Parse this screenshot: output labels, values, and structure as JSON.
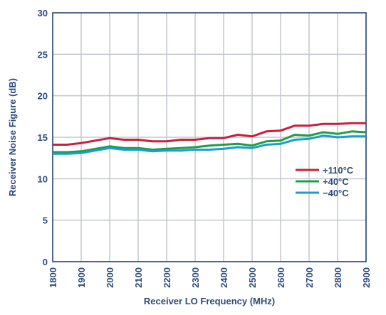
{
  "chart_data": {
    "type": "line",
    "xlabel": "Receiver LO Frequency (MHz)",
    "ylabel": "Receiver Noise Figure (dB)",
    "xlim": [
      1800,
      2900
    ],
    "ylim": [
      0,
      30
    ],
    "x_ticks": [
      "1800",
      "1900",
      "2000",
      "2100",
      "2200",
      "2300",
      "2400",
      "2500",
      "2600",
      "2700",
      "2800",
      "2900"
    ],
    "y_ticks": [
      "0",
      "5",
      "10",
      "15",
      "20",
      "25",
      "30"
    ],
    "grid": true,
    "legend_position": "right",
    "x": [
      1800,
      1850,
      1900,
      1950,
      2000,
      2050,
      2100,
      2150,
      2200,
      2250,
      2300,
      2350,
      2400,
      2450,
      2500,
      2550,
      2600,
      2650,
      2700,
      2750,
      2800,
      2850,
      2900
    ],
    "series": [
      {
        "name": "+110°C",
        "color": "#c8203c",
        "values": [
          14.1,
          14.1,
          14.3,
          14.6,
          14.9,
          14.7,
          14.7,
          14.5,
          14.5,
          14.7,
          14.7,
          14.9,
          14.9,
          15.3,
          15.1,
          15.7,
          15.8,
          16.4,
          16.4,
          16.6,
          16.6,
          16.7,
          16.7
        ]
      },
      {
        "name": "+40°C",
        "color": "#1e9e48",
        "values": [
          13.2,
          13.2,
          13.3,
          13.6,
          13.9,
          13.7,
          13.7,
          13.5,
          13.6,
          13.7,
          13.8,
          14.0,
          14.1,
          14.2,
          14.0,
          14.5,
          14.6,
          15.3,
          15.2,
          15.6,
          15.4,
          15.7,
          15.6
        ]
      },
      {
        "name": "−40°C",
        "color": "#1a9ed0",
        "values": [
          13.0,
          13.0,
          13.1,
          13.4,
          13.7,
          13.5,
          13.5,
          13.3,
          13.4,
          13.4,
          13.5,
          13.5,
          13.6,
          13.8,
          13.7,
          14.1,
          14.2,
          14.7,
          14.8,
          15.2,
          15.0,
          15.1,
          15.1
        ]
      }
    ]
  }
}
